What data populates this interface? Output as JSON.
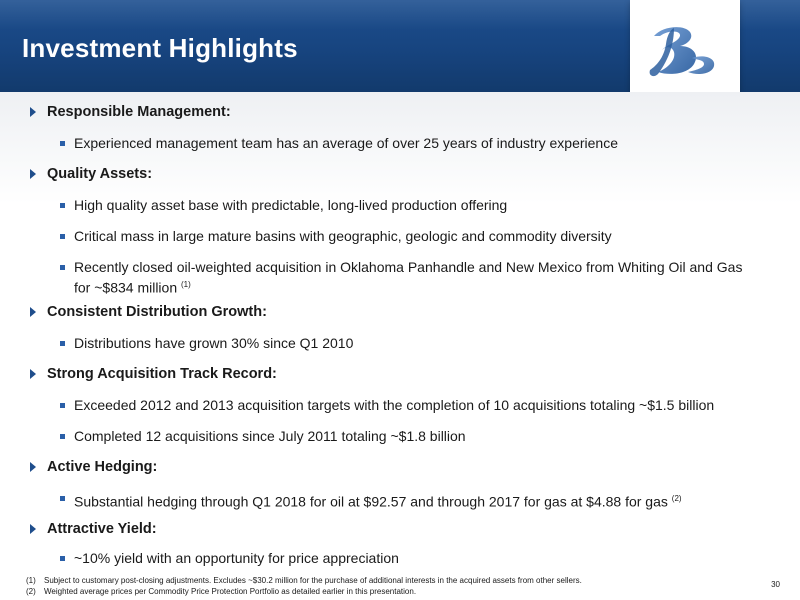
{
  "header": {
    "title": "Investment Highlights",
    "logo_icon": "company-logo-monogram"
  },
  "sections": [
    {
      "heading": "Responsible Management:",
      "bullets": [
        "Experienced management team has an average of over 25 years of industry experience"
      ]
    },
    {
      "heading": "Quality Assets:",
      "bullets": [
        "High quality asset base with predictable, long-lived production offering",
        "Critical mass in large mature basins with geographic, geologic and commodity diversity",
        "Recently closed oil-weighted acquisition in Oklahoma Panhandle and New Mexico from Whiting Oil and Gas",
        "for ~$834 million"
      ],
      "note_ref": "(1)"
    },
    {
      "heading": "Consistent Distribution Growth:",
      "bullets": [
        "Distributions have grown 30% since Q1 2010"
      ]
    },
    {
      "heading": "Strong Acquisition Track Record:",
      "bullets": [
        "Exceeded 2012 and 2013 acquisition targets with the completion of 10 acquisitions totaling ~$1.5 billion",
        "Completed 12 acquisitions since July 2011 totaling ~$1.8 billion"
      ]
    },
    {
      "heading": "Active Hedging:",
      "bullets": [
        "Substantial hedging through Q1 2018 for oil at $92.57 and through 2017 for gas at $4.88 for gas"
      ],
      "note_ref": "(2)"
    },
    {
      "heading": "Attractive Yield:",
      "bullets": [
        "~10% yield with an opportunity for price appreciation"
      ]
    }
  ],
  "footnotes": [
    {
      "num": "(1)",
      "text": "Subject to customary post-closing adjustments. Excludes ~$30.2 million for the purchase of additional interests in the acquired assets from other sellers."
    },
    {
      "num": "(2)",
      "text": "Weighted average prices per Commodity Price Protection Portfolio as detailed earlier in this presentation."
    }
  ],
  "page_number": "30",
  "colors": {
    "header_blue": "#17447f",
    "bullet_blue": "#2a5fa8",
    "logo_blue": "#3a6fb5"
  }
}
